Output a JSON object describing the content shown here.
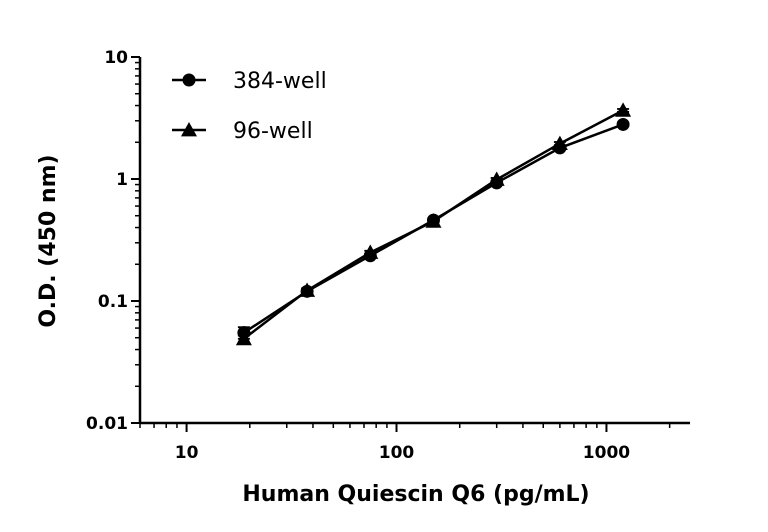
{
  "chart_data": {
    "type": "line",
    "xlabel": "Human Quiescin Q6 (pg/mL)",
    "ylabel": "O.D. (450 nm)",
    "x_scale": "log",
    "y_scale": "log",
    "xlim": [
      6,
      2500
    ],
    "ylim": [
      0.01,
      10
    ],
    "x_ticks": [
      10,
      100,
      1000
    ],
    "x_tick_labels": [
      "10",
      "100",
      "1000"
    ],
    "y_ticks": [
      0.01,
      0.1,
      1,
      10
    ],
    "y_tick_labels": [
      "0.01",
      "0.1",
      "1",
      "10"
    ],
    "grid": false,
    "legend_position": "top-left",
    "series": [
      {
        "name": "384-well",
        "marker": "circle",
        "color": "#000000",
        "x": [
          18.75,
          37.5,
          75,
          150,
          300,
          600,
          1200
        ],
        "y": [
          0.055,
          0.12,
          0.235,
          0.46,
          0.93,
          1.8,
          2.8
        ],
        "error": [
          0.006,
          0.005,
          0.008,
          0.02,
          0.03,
          0.06,
          0.08
        ]
      },
      {
        "name": "96-well",
        "marker": "triangle",
        "color": "#000000",
        "x": [
          18.75,
          37.5,
          75,
          150,
          300,
          600,
          1200
        ],
        "y": [
          0.049,
          0.122,
          0.25,
          0.45,
          0.99,
          1.95,
          3.65
        ],
        "error": [
          0.003,
          0.005,
          0.008,
          0.03,
          0.03,
          0.06,
          0.1
        ]
      }
    ]
  }
}
